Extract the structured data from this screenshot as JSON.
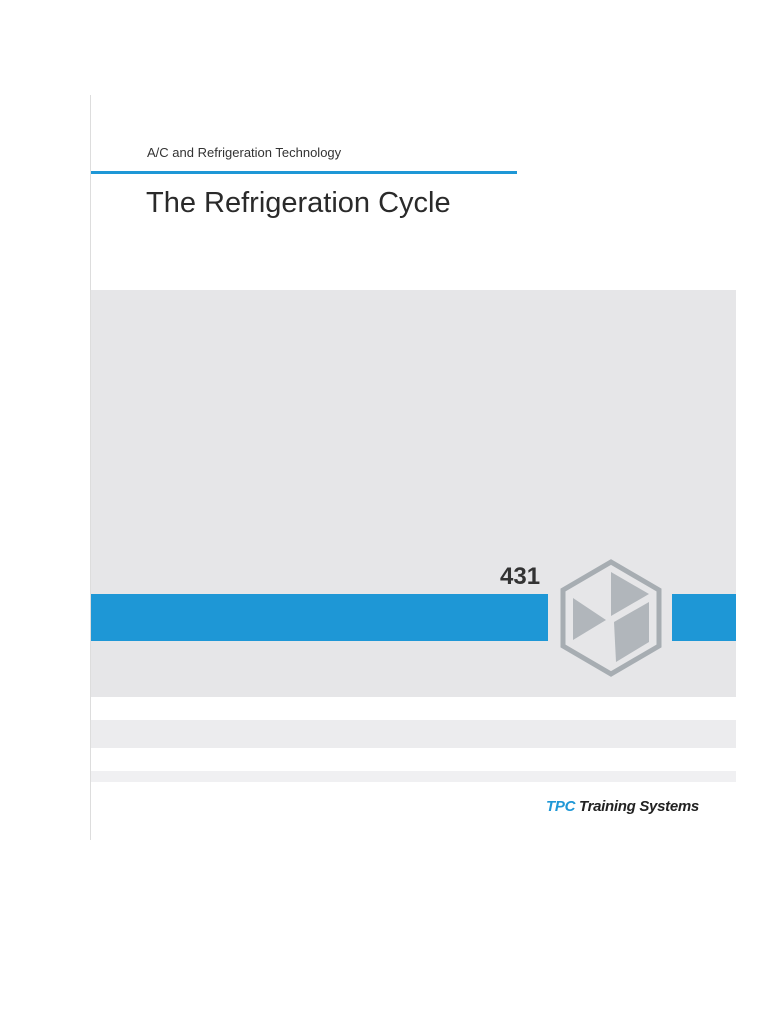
{
  "header": {
    "series": "A/C and Refrigeration Technology",
    "title": "The Refrigeration Cycle"
  },
  "cover": {
    "number": "431"
  },
  "footer": {
    "brand_prefix": "TPC",
    "brand_name": "Training Systems"
  }
}
